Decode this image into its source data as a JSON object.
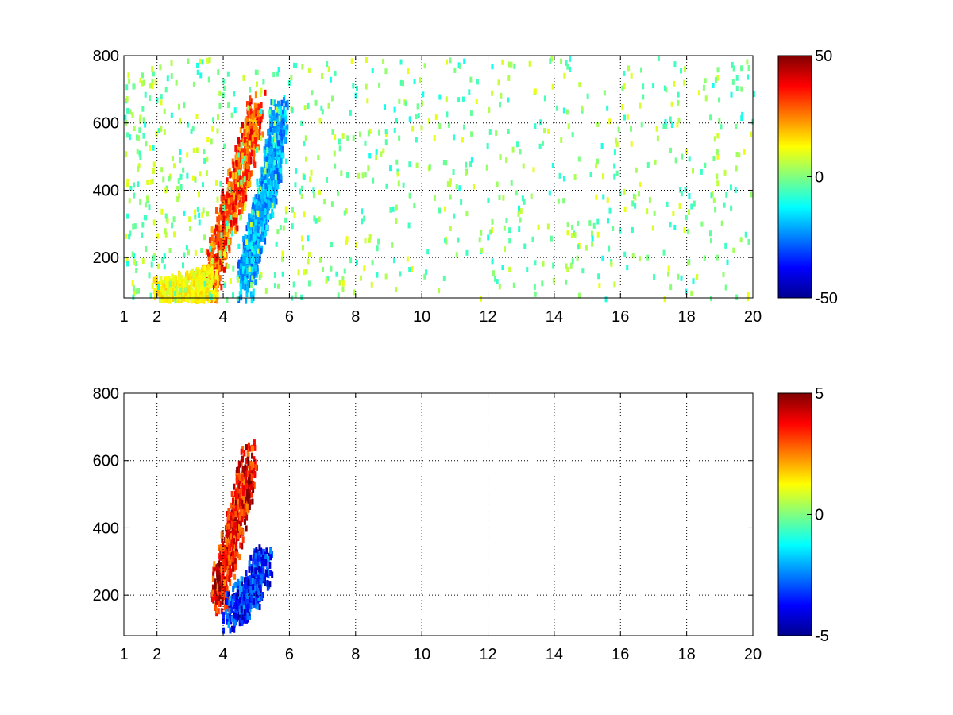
{
  "chart_data": [
    {
      "type": "heatmap",
      "title": "",
      "xlabel": "",
      "ylabel": "",
      "xlim": [
        1,
        20
      ],
      "ylim": [
        80,
        800
      ],
      "x_ticks": [
        "1",
        "2",
        "4",
        "6",
        "8",
        "10",
        "12",
        "14",
        "16",
        "18",
        "20"
      ],
      "y_ticks": [
        "200",
        "400",
        "600",
        "800"
      ],
      "grid": true,
      "colormap": "jet",
      "clim": [
        -50,
        50
      ],
      "colorbar_ticks": [
        "50",
        "0",
        "-50"
      ],
      "features": [
        {
          "desc": "positive ridge",
          "x": [
            3.5,
            4.0,
            4.5,
            5.0
          ],
          "y": [
            100,
            300,
            450,
            650
          ],
          "value": 35
        },
        {
          "desc": "negative ridge",
          "x": [
            4.6,
            5.0,
            5.4,
            5.7
          ],
          "y": [
            120,
            300,
            450,
            650
          ],
          "value": -25
        },
        {
          "desc": "low-frequency band",
          "x": [
            2.0,
            3.0,
            3.6
          ],
          "y": [
            90,
            110,
            130
          ],
          "value": 15
        }
      ]
    },
    {
      "type": "heatmap",
      "title": "",
      "xlabel": "",
      "ylabel": "",
      "xlim": [
        1,
        20
      ],
      "ylim": [
        80,
        800
      ],
      "x_ticks": [
        "1",
        "2",
        "4",
        "6",
        "8",
        "10",
        "12",
        "14",
        "16",
        "18",
        "20"
      ],
      "y_ticks": [
        "200",
        "400",
        "600",
        "800"
      ],
      "grid": true,
      "colormap": "jet",
      "clim": [
        -5,
        5
      ],
      "colorbar_ticks": [
        "5",
        "0",
        "-5"
      ],
      "features": [
        {
          "desc": "positive ridge",
          "x": [
            3.8,
            4.3,
            4.8
          ],
          "y": [
            200,
            400,
            620
          ],
          "value": 4.5
        },
        {
          "desc": "negative region",
          "x": [
            4.2,
            4.8,
            5.2
          ],
          "y": [
            150,
            220,
            300
          ],
          "value": -4
        }
      ]
    }
  ]
}
